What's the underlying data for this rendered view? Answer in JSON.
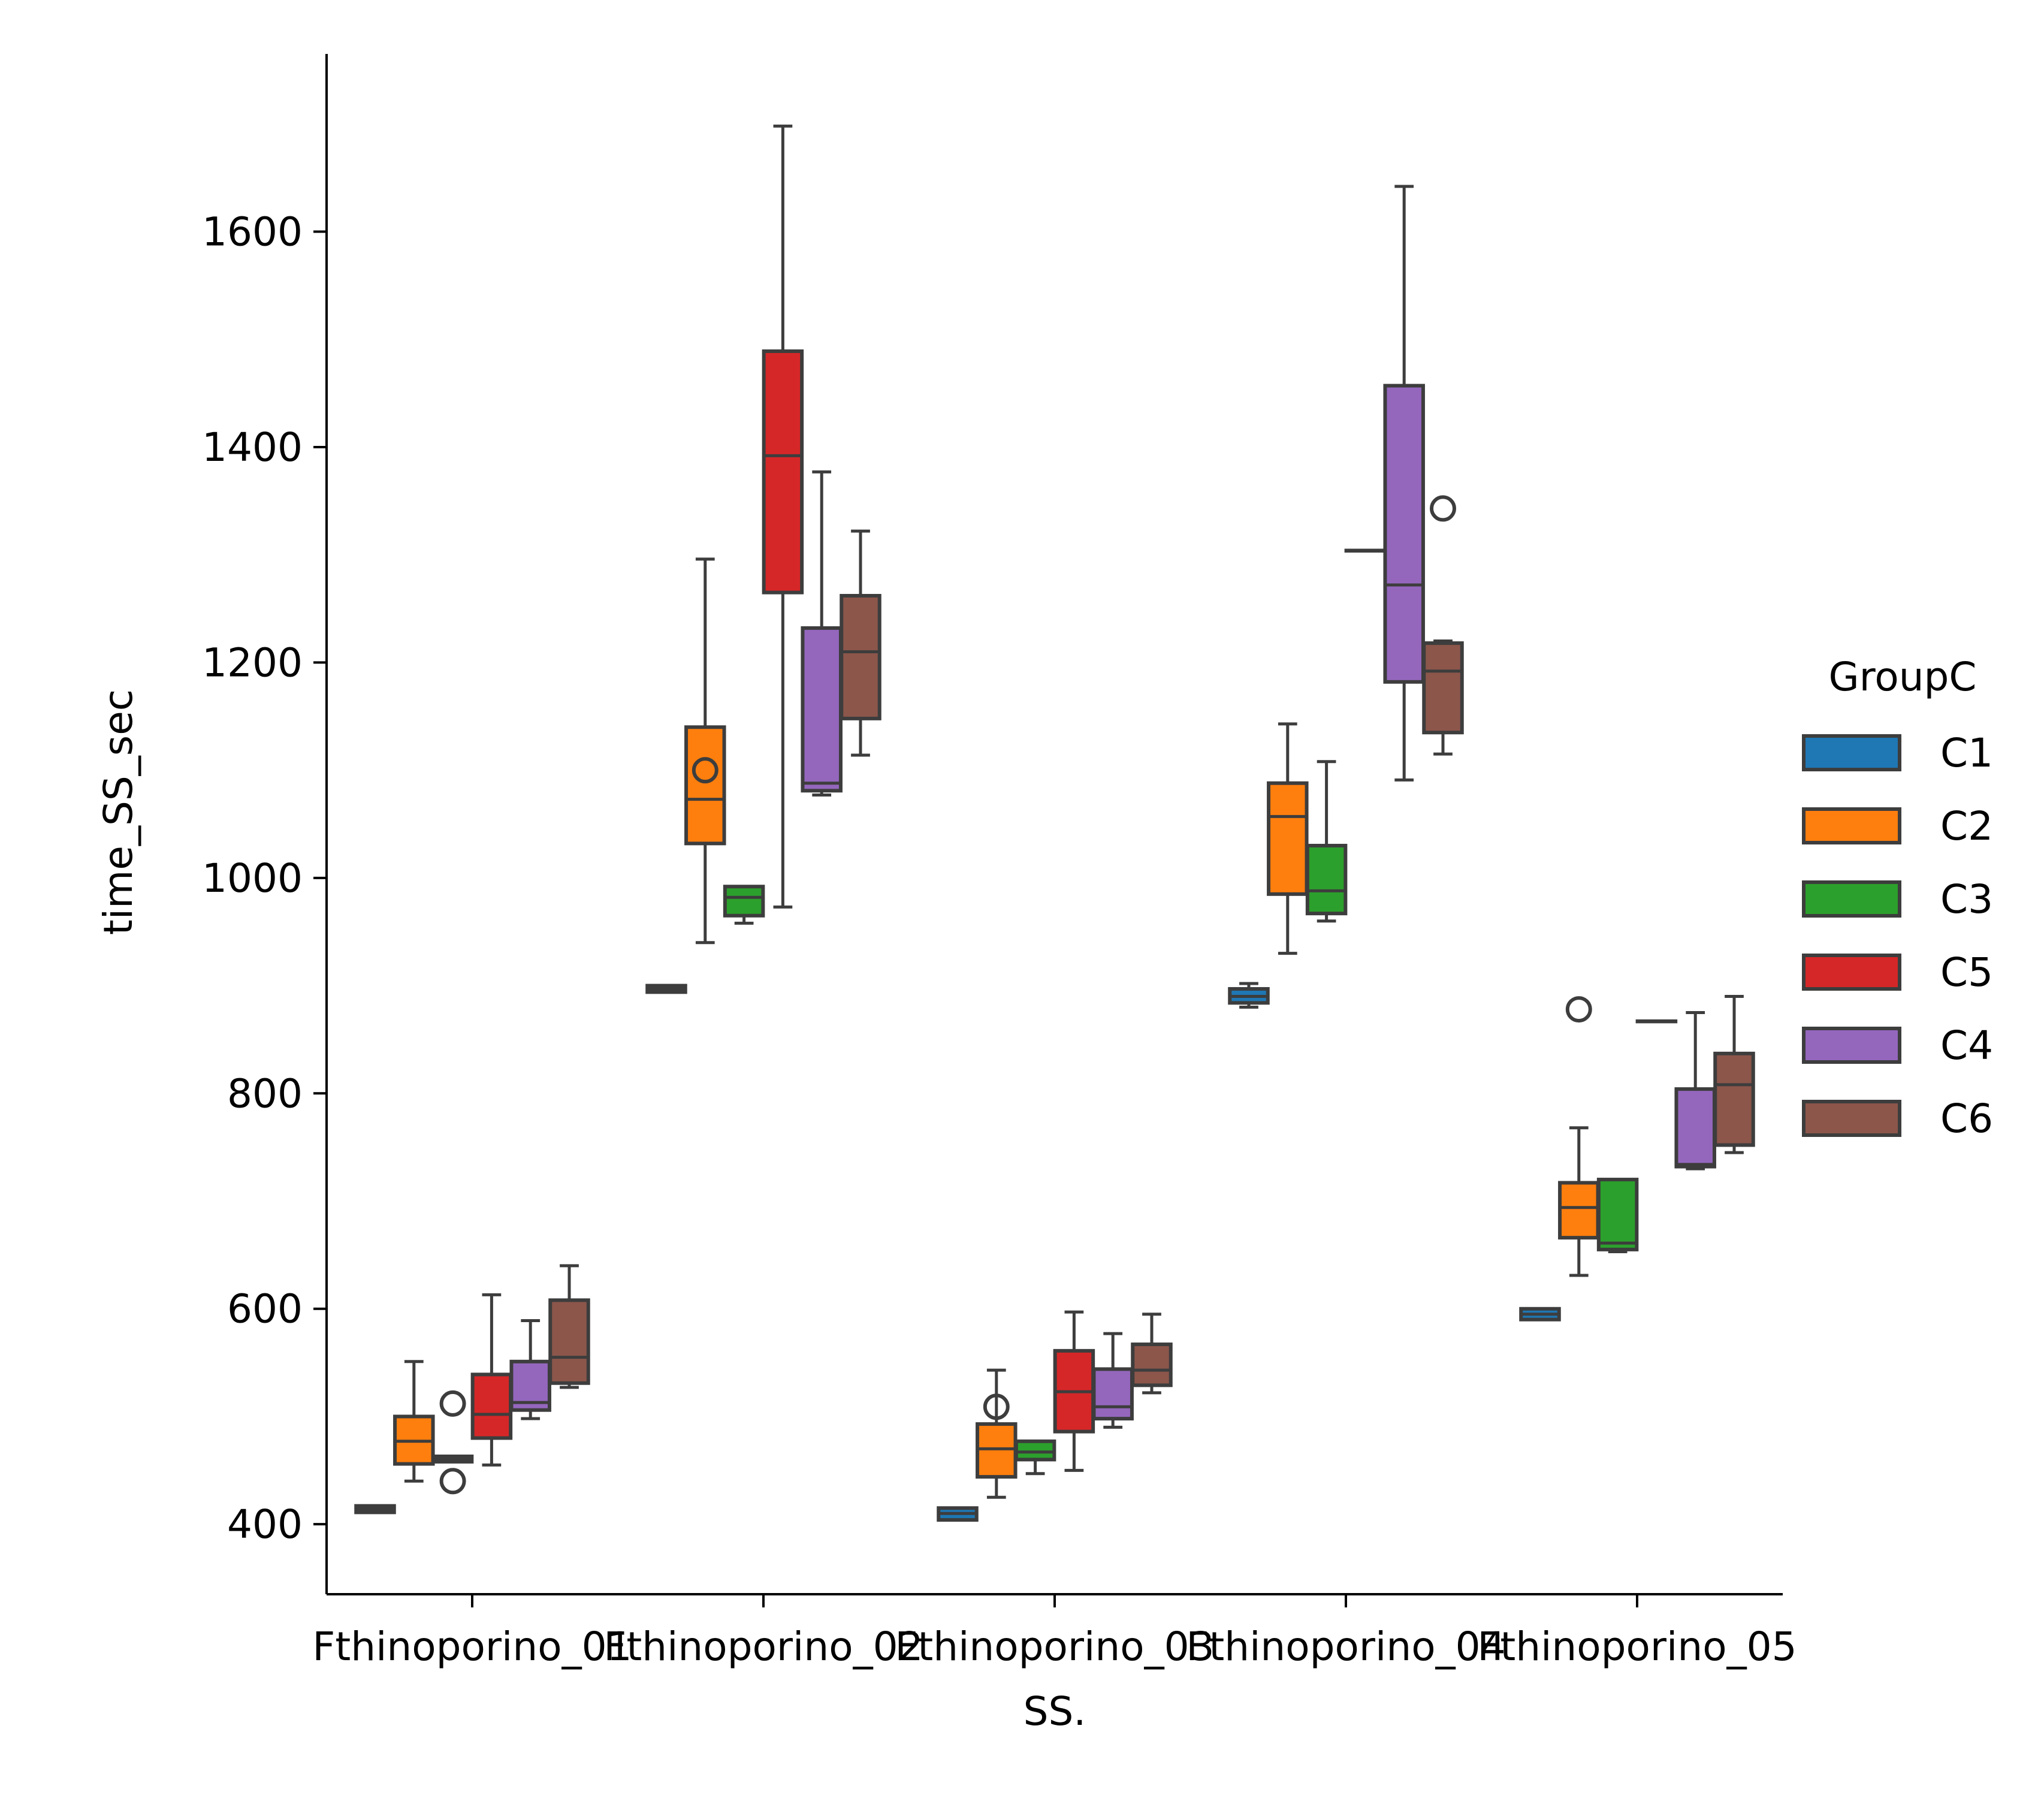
{
  "chart_data": {
    "type": "box",
    "xlabel": "SS.",
    "ylabel": "time_SS_sec",
    "ylim": [
      335,
      1765
    ],
    "yticks": [
      400,
      600,
      800,
      1000,
      1200,
      1400,
      1600
    ],
    "categories": [
      "Fthinoporino_01",
      "Fthinoporino_02",
      "Fthinoporino_03",
      "Fthinoporino_04",
      "Fthinoporino_05"
    ],
    "legend": {
      "title": "GroupC",
      "position": "right"
    },
    "series": [
      {
        "name": "C1",
        "color": "#1f77b4",
        "boxes": [
          {
            "whislo": 411,
            "q1": 411,
            "med": 414,
            "q3": 417,
            "whishi": 417,
            "fliers": []
          },
          {
            "whislo": 894,
            "q1": 894,
            "med": 897,
            "q3": 900,
            "whishi": 900,
            "fliers": []
          },
          {
            "whislo": 404,
            "q1": 404,
            "med": 410,
            "q3": 415,
            "whishi": 415,
            "fliers": []
          },
          {
            "whislo": 880,
            "q1": 884,
            "med": 890,
            "q3": 897,
            "whishi": 902,
            "fliers": []
          },
          {
            "whislo": 590,
            "q1": 590,
            "med": 595,
            "q3": 600,
            "whishi": 600,
            "fliers": []
          }
        ]
      },
      {
        "name": "C2",
        "color": "#ff7f0e",
        "boxes": [
          {
            "whislo": 440,
            "q1": 456,
            "med": 477,
            "q3": 500,
            "whishi": 551,
            "fliers": []
          },
          {
            "whislo": 940,
            "q1": 1032,
            "med": 1073,
            "q3": 1140,
            "whishi": 1296,
            "fliers": [
              1100
            ]
          },
          {
            "whislo": 425,
            "q1": 444,
            "med": 470,
            "q3": 493,
            "whishi": 543,
            "fliers": [
              509
            ]
          },
          {
            "whislo": 930,
            "q1": 985,
            "med": 1057,
            "q3": 1088,
            "whishi": 1143,
            "fliers": []
          },
          {
            "whislo": 631,
            "q1": 666,
            "med": 694,
            "q3": 717,
            "whishi": 768,
            "fliers": [
              878
            ]
          }
        ]
      },
      {
        "name": "C3",
        "color": "#2ca02c",
        "boxes": [
          {
            "whislo": 458,
            "q1": 458,
            "med": 460,
            "q3": 463,
            "whishi": 463,
            "fliers": [
              512,
              440
            ]
          },
          {
            "whislo": 958,
            "q1": 965,
            "med": 982,
            "q3": 992,
            "whishi": 992,
            "fliers": []
          },
          {
            "whislo": 447,
            "q1": 460,
            "med": 467,
            "q3": 477,
            "whishi": 477,
            "fliers": []
          },
          {
            "whislo": 960,
            "q1": 967,
            "med": 988,
            "q3": 1030,
            "whishi": 1108,
            "fliers": []
          },
          {
            "whislo": 653,
            "q1": 655,
            "med": 661,
            "q3": 720,
            "whishi": 720,
            "fliers": []
          }
        ]
      },
      {
        "name": "C5",
        "color": "#d62728",
        "boxes": [
          {
            "whislo": 455,
            "q1": 480,
            "med": 502,
            "q3": 539,
            "whishi": 613,
            "fliers": []
          },
          {
            "whislo": 973,
            "q1": 1265,
            "med": 1392,
            "q3": 1489,
            "whishi": 1698,
            "fliers": []
          },
          {
            "whislo": 450,
            "q1": 486,
            "med": 523,
            "q3": 561,
            "whishi": 597,
            "fliers": []
          },
          {
            "whislo": 1304,
            "q1": 1304,
            "med": 1304,
            "q3": 1304,
            "whishi": 1304,
            "fliers": []
          },
          {
            "whislo": 867,
            "q1": 867,
            "med": 867,
            "q3": 867,
            "whishi": 867,
            "fliers": []
          }
        ]
      },
      {
        "name": "C4",
        "color": "#9467bd",
        "boxes": [
          {
            "whislo": 498,
            "q1": 506,
            "med": 513,
            "q3": 551,
            "whishi": 589,
            "fliers": []
          },
          {
            "whislo": 1077,
            "q1": 1081,
            "med": 1088,
            "q3": 1232,
            "whishi": 1377,
            "fliers": []
          },
          {
            "whislo": 490,
            "q1": 498,
            "med": 509,
            "q3": 544,
            "whishi": 577,
            "fliers": []
          },
          {
            "whislo": 1091,
            "q1": 1182,
            "med": 1272,
            "q3": 1457,
            "whishi": 1642,
            "fliers": []
          },
          {
            "whislo": 730,
            "q1": 732,
            "med": 734,
            "q3": 804,
            "whishi": 875,
            "fliers": []
          }
        ]
      },
      {
        "name": "C6",
        "color": "#8c564b",
        "boxes": [
          {
            "whislo": 527,
            "q1": 531,
            "med": 555,
            "q3": 608,
            "whishi": 640,
            "fliers": []
          },
          {
            "whislo": 1114,
            "q1": 1148,
            "med": 1210,
            "q3": 1262,
            "whishi": 1322,
            "fliers": []
          },
          {
            "whislo": 522,
            "q1": 529,
            "med": 543,
            "q3": 567,
            "whishi": 595,
            "fliers": []
          },
          {
            "whislo": 1115,
            "q1": 1135,
            "med": 1192,
            "q3": 1218,
            "whishi": 1220,
            "fliers": [
              1343
            ]
          },
          {
            "whislo": 745,
            "q1": 752,
            "med": 808,
            "q3": 837,
            "whishi": 890,
            "fliers": []
          }
        ]
      }
    ]
  }
}
